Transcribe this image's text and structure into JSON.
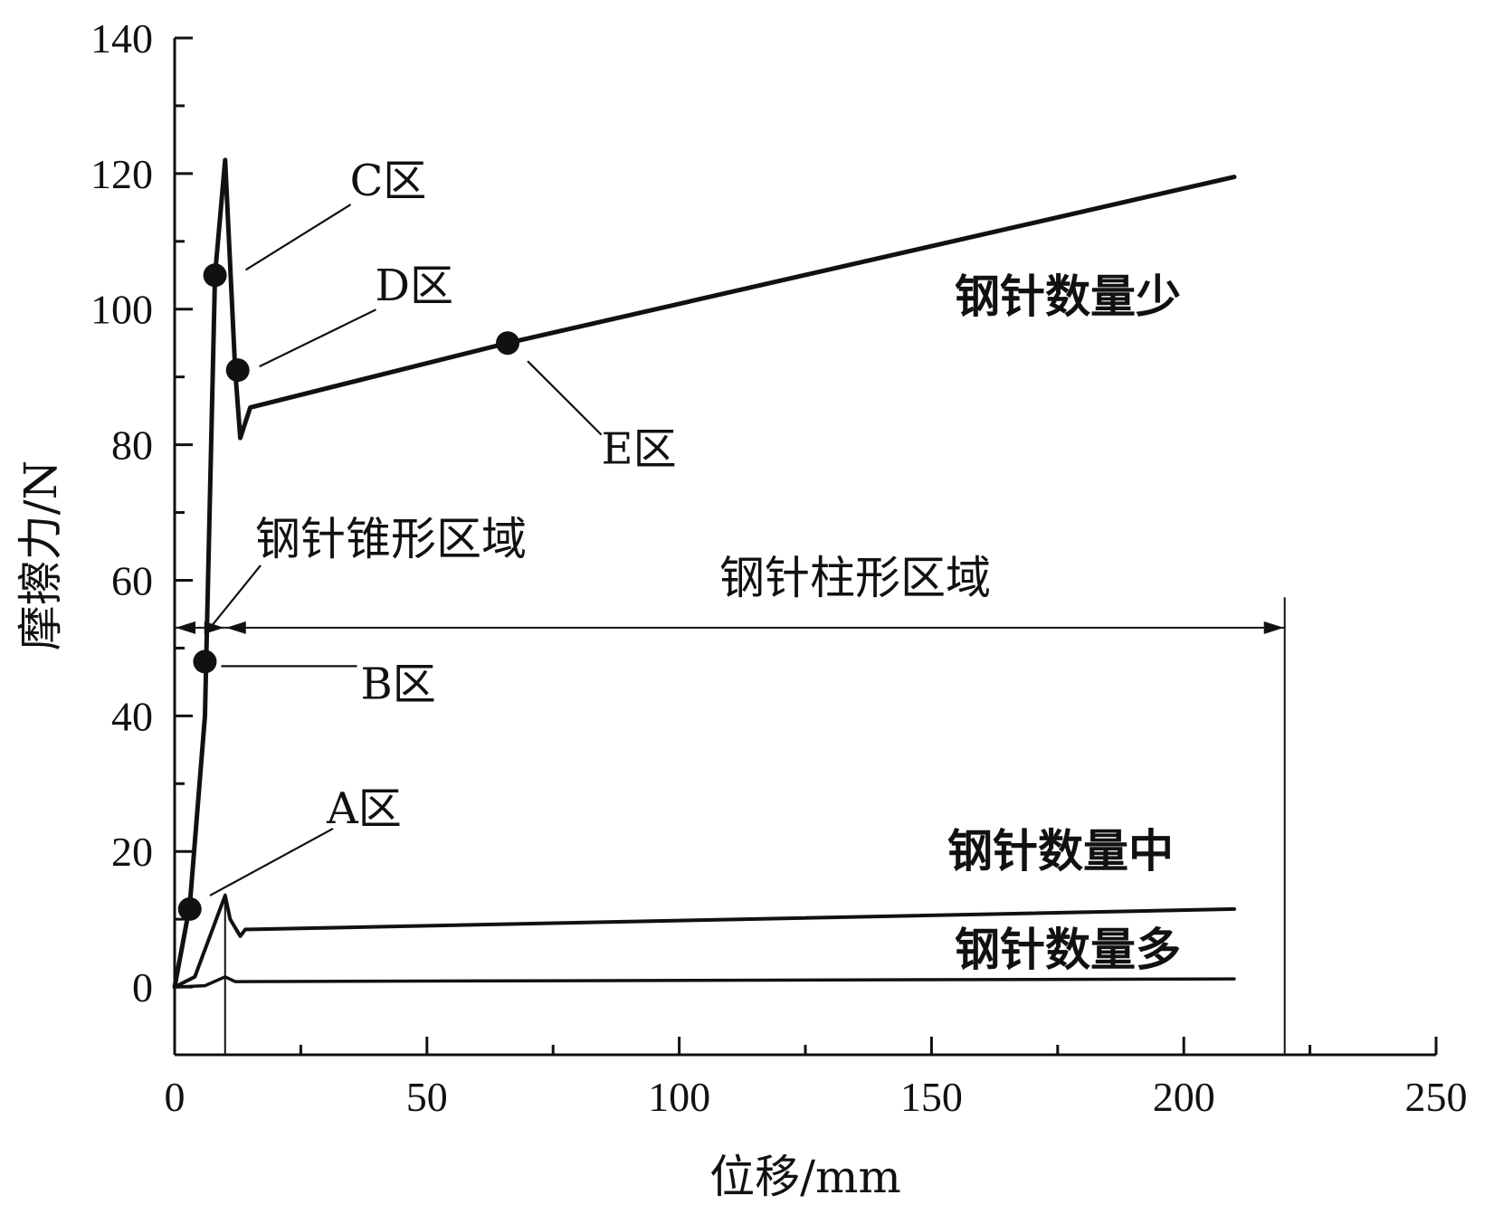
{
  "chart_data": {
    "type": "line",
    "xlabel": "位移/mm",
    "ylabel": "摩擦力/N",
    "xlim": [
      0,
      250
    ],
    "ylim": [
      -10,
      140
    ],
    "x_ticks": [
      0,
      50,
      100,
      150,
      200,
      250
    ],
    "y_ticks": [
      0,
      20,
      40,
      60,
      80,
      100,
      120,
      140
    ],
    "grid": false,
    "series": [
      {
        "name": "钢针数量少",
        "x": [
          0,
          3,
          6,
          8,
          10,
          12,
          13,
          15,
          66,
          210
        ],
        "y": [
          0,
          12,
          40,
          105,
          122,
          91,
          81,
          85.5,
          95,
          119.5
        ]
      },
      {
        "name": "钢针数量中",
        "x": [
          0,
          4,
          10,
          11,
          13,
          14,
          15,
          210
        ],
        "y": [
          0,
          1.5,
          13.5,
          10,
          7.5,
          8.5,
          8.5,
          11.5
        ]
      },
      {
        "name": "钢针数量多",
        "x": [
          0,
          6,
          10,
          12,
          210
        ],
        "y": [
          0,
          0.2,
          1.5,
          0.8,
          1.2
        ]
      }
    ],
    "zones": [
      {
        "label": "A区",
        "x": 3,
        "y": 11.5,
        "label_x": 30.5,
        "label_y": 21.5
      },
      {
        "label": "B区",
        "x": 6,
        "y": 48,
        "label_x": 36.5,
        "label_y": 46
      },
      {
        "label": "C区",
        "x": 8,
        "y": 105,
        "label_x": 34,
        "label_y": 116.5
      },
      {
        "label": "D区",
        "x": 12.5,
        "y": 91,
        "label_x": 39,
        "label_y": 101
      },
      {
        "label": "E区",
        "x": 66,
        "y": 95,
        "label_x": 86,
        "label_y": 82
      }
    ],
    "regions": [
      {
        "label": "钢针锥形区域",
        "x_start": 0,
        "x_end": 10
      },
      {
        "label": "钢针柱形区域",
        "x_start": 10,
        "x_end": 220
      }
    ],
    "region_arrow_y": 53
  }
}
